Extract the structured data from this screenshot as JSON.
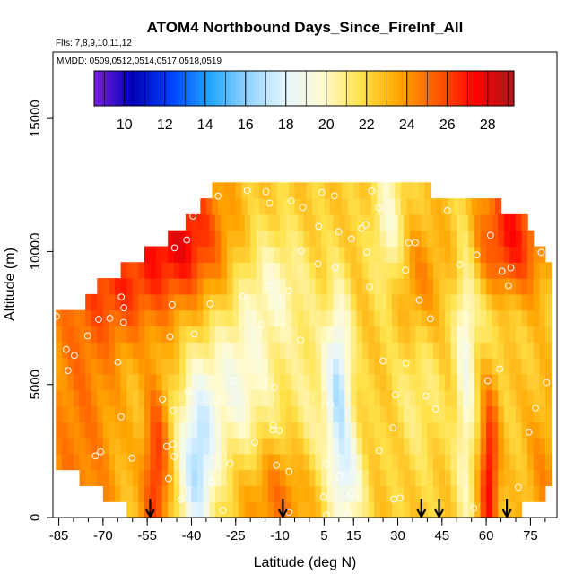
{
  "chart_data": {
    "type": "heatmap",
    "title": "ATOM4 Northbound Days_Since_FireInf_All",
    "flights_note": "Flts: 7,8,9,10,11,12",
    "dates_note": "MMDD: 0509,0512,0514,0517,0518,0519",
    "xlabel": "Latitude (deg N)",
    "ylabel": "Altitude (m)",
    "xlim": [
      -87,
      84
    ],
    "ylim": [
      0,
      17500
    ],
    "x_ticks": [
      -85,
      -70,
      -55,
      -40,
      -25,
      -10,
      5,
      15,
      30,
      45,
      60,
      75
    ],
    "y_ticks": [
      0,
      5000,
      10000,
      15000
    ],
    "colorbar": {
      "min": 8.5,
      "max": 29.3,
      "ticks": [
        10,
        12,
        14,
        16,
        18,
        20,
        22,
        24,
        26,
        28
      ],
      "colors": [
        "#7b1fe0",
        "#0000b4",
        "#0040ff",
        "#1fa4ff",
        "#8fd2ff",
        "#e6f6ff",
        "#fffbd0",
        "#ffe24a",
        "#ffa400",
        "#ff5a00",
        "#ff0000",
        "#a81a1a"
      ]
    },
    "arrow_latitudes": [
      -54,
      -9,
      38,
      44,
      67
    ],
    "altitude_bins_m": [
      300,
      900,
      1500,
      2100,
      2700,
      3300,
      3900,
      4500,
      5100,
      5700,
      6300,
      6900,
      7500,
      8100,
      8700,
      9300,
      9900,
      10500,
      11100,
      11700,
      12300
    ],
    "coverage_lat_range": [
      [
        -62,
        72
      ],
      [
        -70,
        80
      ],
      [
        -78,
        82
      ],
      [
        -86,
        82
      ],
      [
        -86,
        82
      ],
      [
        -86,
        82
      ],
      [
        -86,
        82
      ],
      [
        -86,
        82
      ],
      [
        -86,
        82
      ],
      [
        -86,
        82
      ],
      [
        -86,
        82
      ],
      [
        -86,
        82
      ],
      [
        -86,
        82
      ],
      [
        -76,
        82
      ],
      [
        -72,
        82
      ],
      [
        -64,
        82
      ],
      [
        -56,
        80
      ],
      [
        -48,
        76
      ],
      [
        -42,
        74
      ],
      [
        -37,
        64
      ],
      [
        -33,
        40
      ]
    ]
  }
}
